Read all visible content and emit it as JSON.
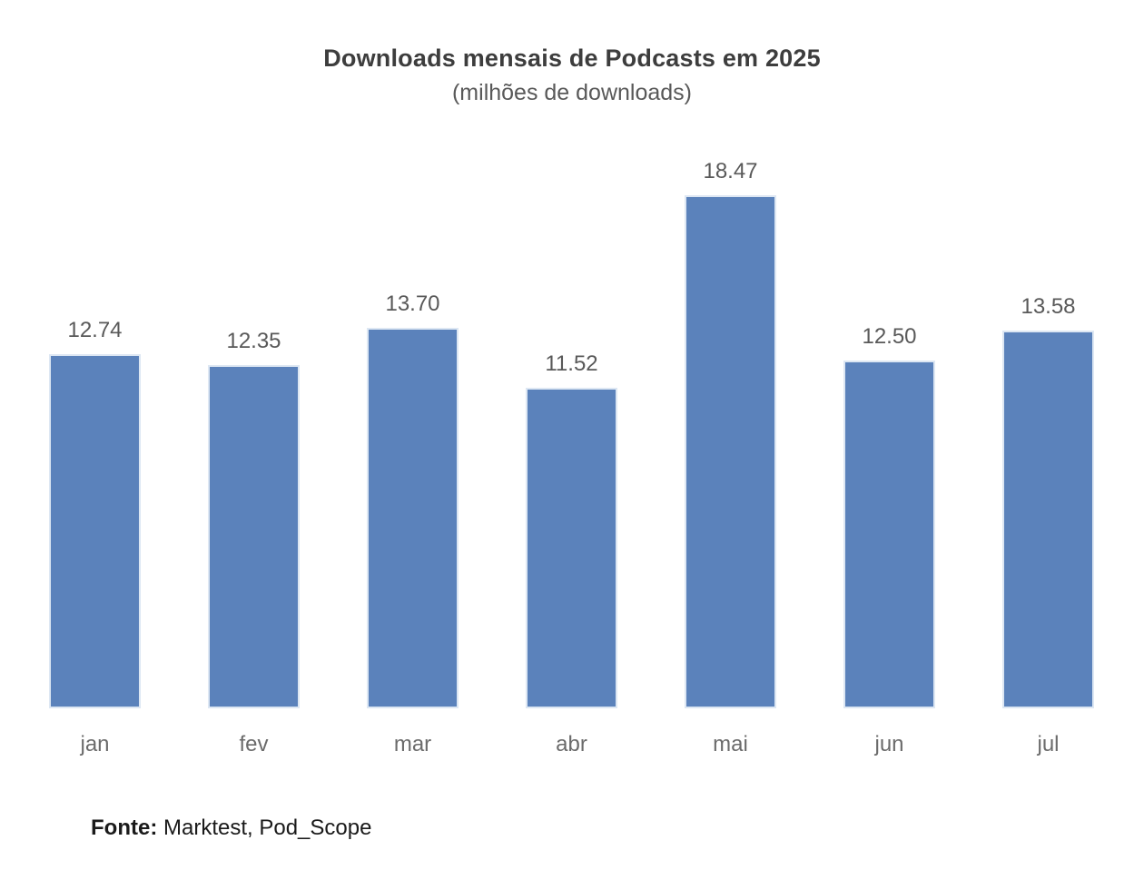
{
  "chart_data": {
    "type": "bar",
    "title": "Downloads mensais de Podcasts em 2025",
    "subtitle": "(milhões de downloads)",
    "categories": [
      "jan",
      "fev",
      "mar",
      "abr",
      "mai",
      "jun",
      "jul"
    ],
    "values": [
      12.74,
      12.35,
      13.7,
      11.52,
      18.47,
      12.5,
      13.58
    ],
    "bar_color": "#5b82bb",
    "label_color": "#595959",
    "ylim": [
      0,
      20
    ],
    "grid": false,
    "legend_position": "none",
    "source_label": "Fonte:",
    "source_text": " Marktest, Pod_Scope"
  }
}
